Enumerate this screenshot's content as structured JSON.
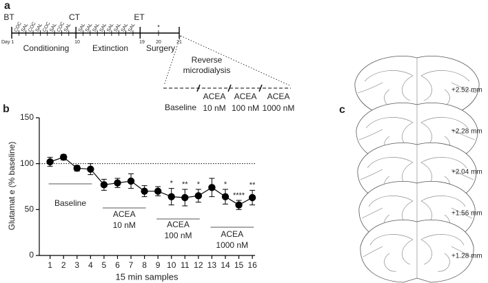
{
  "panel_a": {
    "label": "a",
    "markers": [
      "BT",
      "CT",
      "ET"
    ],
    "day_labels": [
      "Day 1",
      "10",
      "19",
      "20",
      "21"
    ],
    "star": "*",
    "phases": [
      "Conditioning",
      "Extinction",
      "Surgery"
    ],
    "sessions": [
      "COC",
      "SAL",
      "COC",
      "SAL",
      "COC",
      "SAL",
      "COC",
      "SAL",
      "SAL",
      "SAL",
      "SAL",
      "SAL",
      "SAL",
      "SAL",
      "SAL",
      "SAL"
    ],
    "reverse": [
      "Reverse",
      "microdialysis"
    ],
    "conditions": [
      [
        "Baseline"
      ],
      [
        "ACEA",
        "10 nM"
      ],
      [
        "ACEA",
        "100 nM"
      ],
      [
        "ACEA",
        "1000 nM"
      ]
    ]
  },
  "chart_data": {
    "type": "line",
    "panel_label": "b",
    "xlabel": "15 min samples",
    "ylabel": "Glutamat e (% baseline)",
    "x": [
      1,
      2,
      3,
      4,
      5,
      6,
      7,
      8,
      9,
      10,
      11,
      12,
      13,
      14,
      15,
      16
    ],
    "series": [
      {
        "color": "#000000",
        "values": [
          102,
          107,
          95,
          94,
          77,
          79,
          81,
          70,
          70,
          64,
          63,
          65,
          74,
          64,
          55,
          63
        ],
        "errors": [
          5,
          3,
          3,
          6,
          6,
          5,
          8,
          6,
          5,
          9,
          9,
          7,
          10,
          8,
          5,
          8
        ]
      }
    ],
    "xlim": [
      0.2,
      16.2
    ],
    "ylim": [
      0,
      150
    ],
    "xticks": [
      1,
      2,
      3,
      4,
      5,
      6,
      7,
      8,
      9,
      10,
      11,
      12,
      13,
      14,
      15,
      16
    ],
    "yticks": [
      0,
      50,
      100,
      150
    ],
    "reference_line": 100,
    "annotations": [
      {
        "x": 10,
        "label": "*"
      },
      {
        "x": 11,
        "label": "**"
      },
      {
        "x": 12,
        "label": "*"
      },
      {
        "x": 14,
        "label": "*"
      },
      {
        "x": 15,
        "label": "****"
      },
      {
        "x": 16,
        "label": "**"
      }
    ],
    "groups": [
      {
        "lines": [
          "Baseline"
        ],
        "from": 1,
        "to": 4
      },
      {
        "lines": [
          "ACEA",
          "10 nM"
        ],
        "from": 5,
        "to": 8
      },
      {
        "lines": [
          "ACEA",
          "100 nM"
        ],
        "from": 9,
        "to": 12
      },
      {
        "lines": [
          "ACEA",
          "1000 nM"
        ],
        "from": 13,
        "to": 16
      }
    ]
  },
  "panel_c": {
    "label": "c",
    "levels": [
      "+2.52 mm",
      "+2.28 mm",
      "+2.04 mm",
      "+1.56 mm",
      "+1.28 mm"
    ]
  }
}
